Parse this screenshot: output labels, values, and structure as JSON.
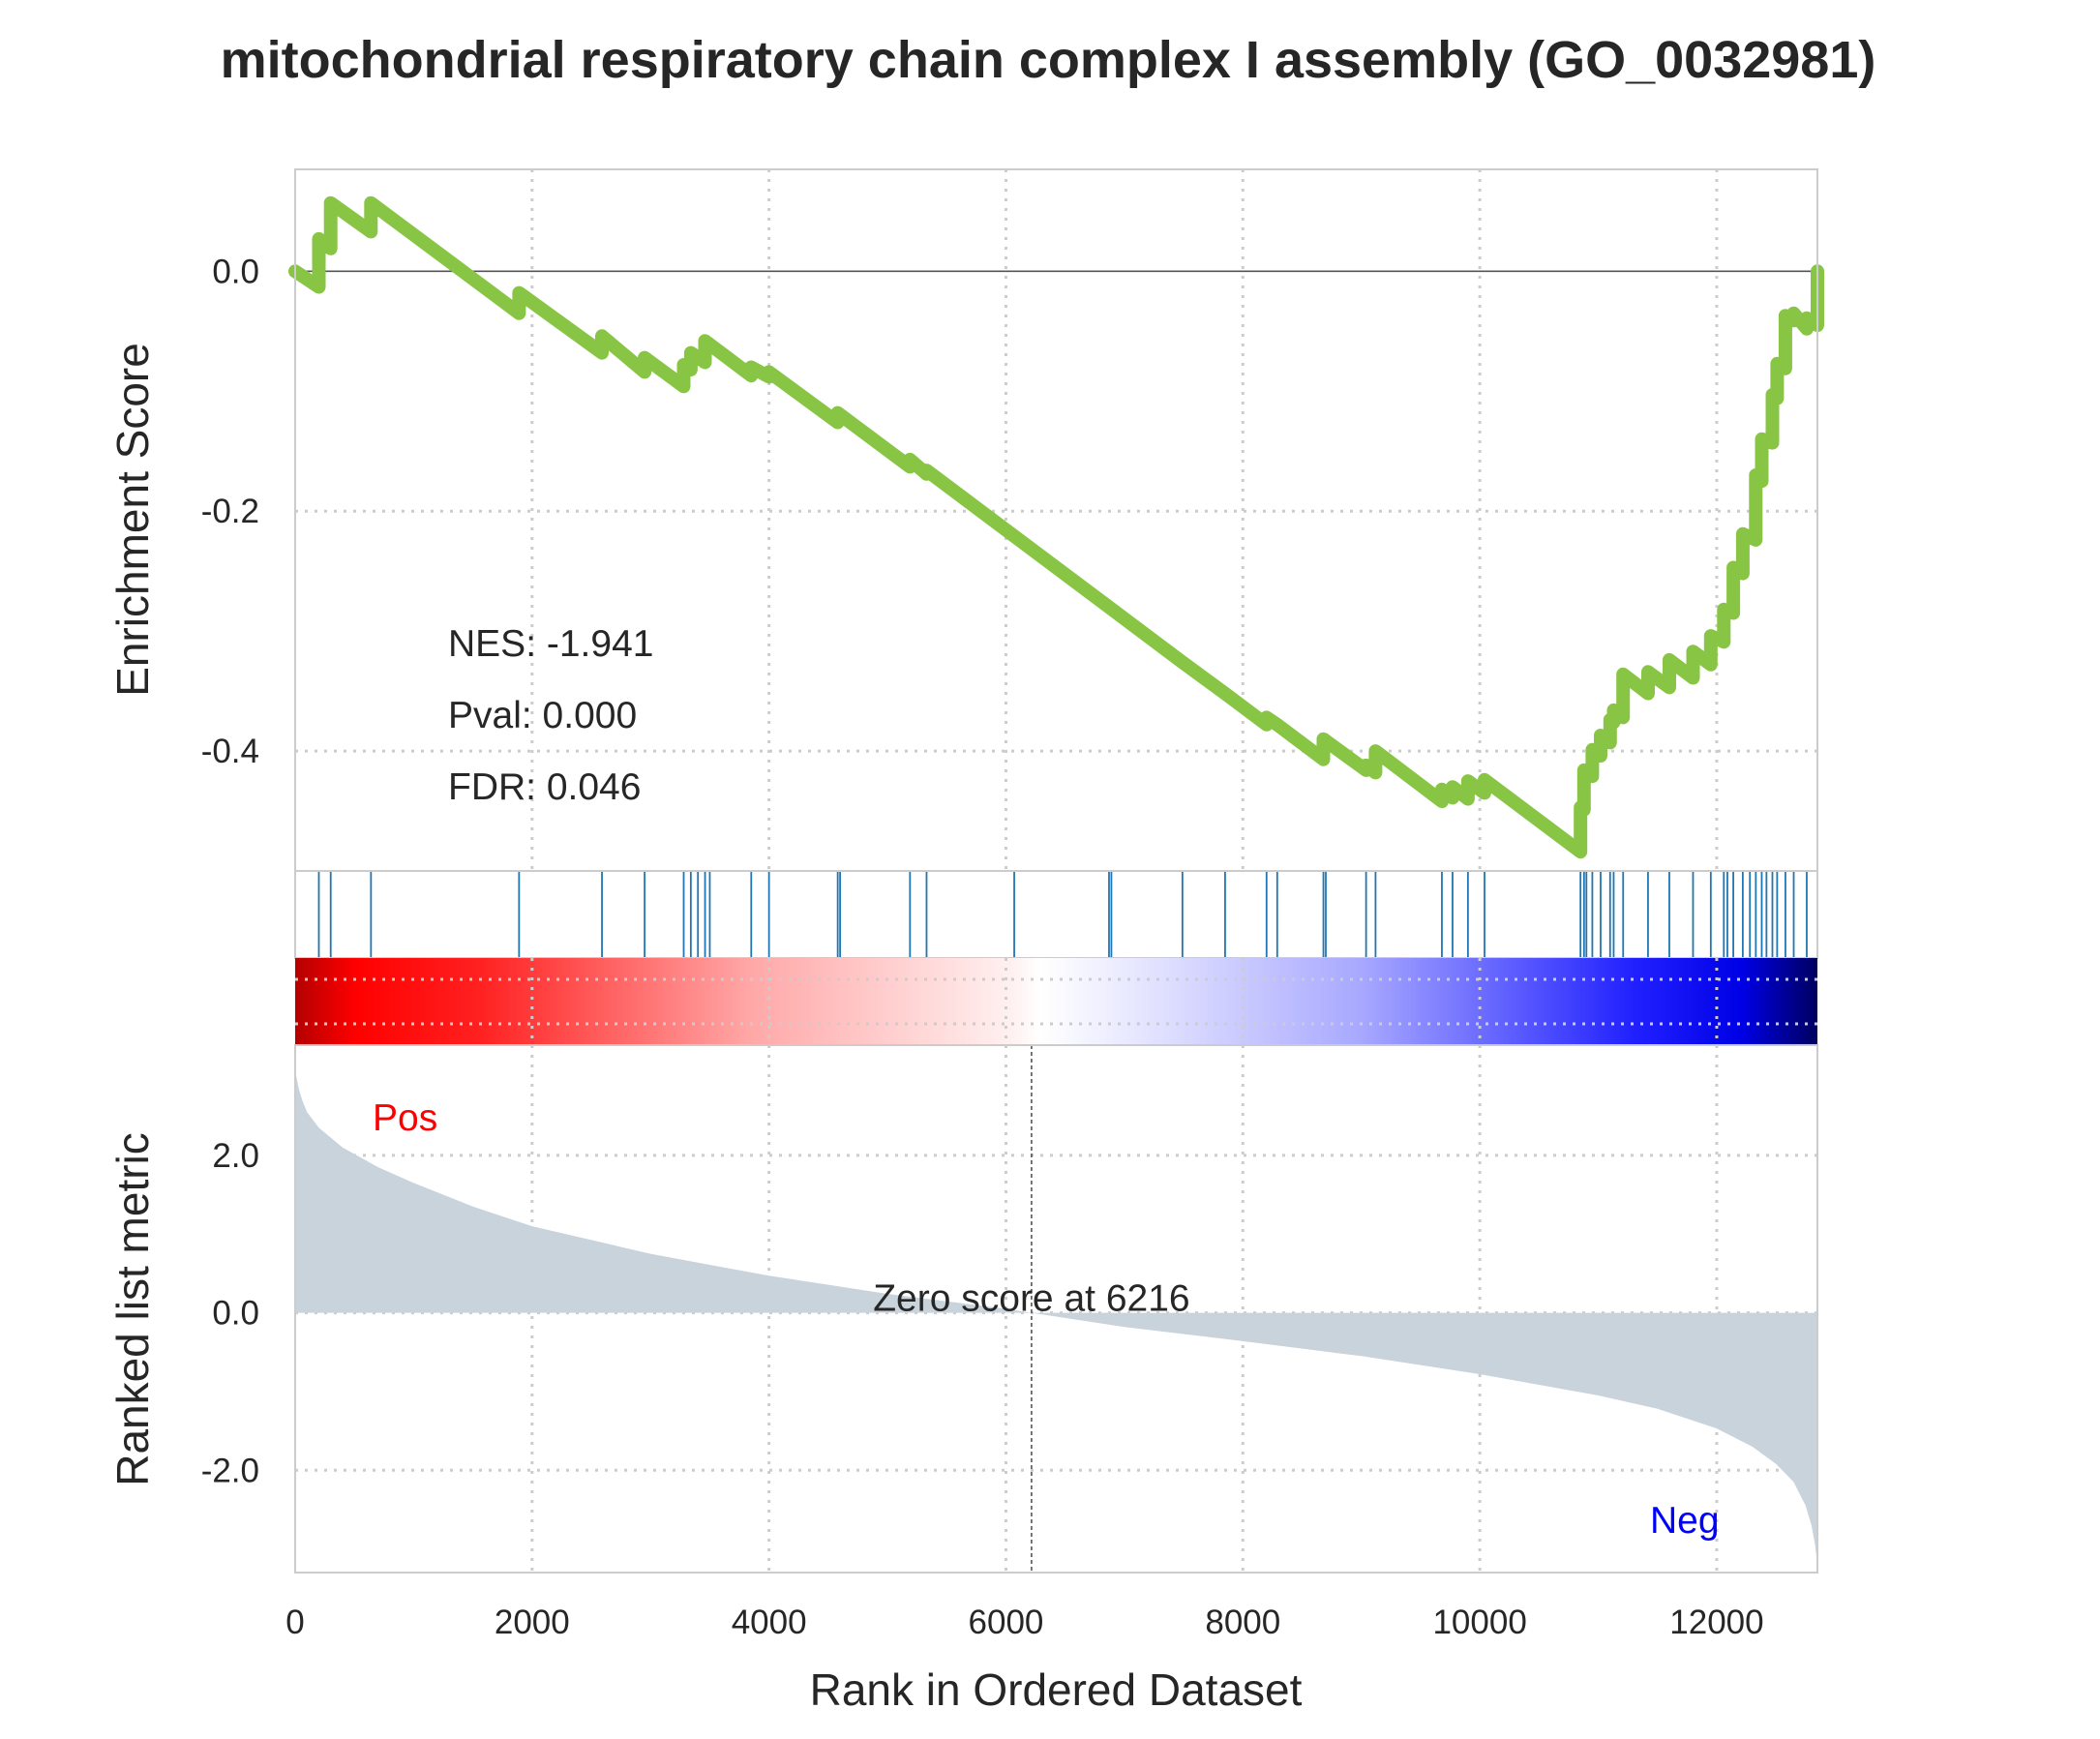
{
  "title": "mitochondrial respiratory chain complex I assembly (GO_0032981)",
  "stats": {
    "nes": "NES: -1.941",
    "pval": "Pval: 0.000",
    "fdr": "FDR: 0.046"
  },
  "labels": {
    "pos": "Pos",
    "neg": "Neg",
    "zero_score": "Zero score at 6216"
  },
  "colors": {
    "es_line": "#88C544",
    "hits": "#1F77B4",
    "metric_fill": "#C9D3DC",
    "pos_text": "#FF0000",
    "neg_text": "#0000FF"
  },
  "chart_data": [
    {
      "type": "line",
      "name": "enrichment-score",
      "ylabel": "Enrichment Score",
      "xlim": [
        0,
        12850
      ],
      "ylim": [
        -0.5,
        0.085
      ],
      "yticks": [
        0.0,
        -0.2,
        -0.4
      ],
      "ytick_labels": [
        "0.0",
        "-0.2",
        "-0.4"
      ],
      "grid": true,
      "x": [
        0,
        200,
        200,
        210,
        300,
        300,
        640,
        640,
        1890,
        1890,
        2590,
        2590,
        2950,
        2950,
        3280,
        3280,
        3340,
        3340,
        3460,
        3460,
        3850,
        3850,
        4000,
        4000,
        4580,
        4580,
        5190,
        5190,
        5330,
        5330,
        6870,
        6870,
        7490,
        7490,
        7850,
        7850,
        8200,
        8200,
        8290,
        8290,
        8680,
        8680,
        9040,
        9040,
        9120,
        9120,
        9680,
        9680,
        9770,
        9770,
        9900,
        9900,
        10040,
        10040,
        10850,
        10850,
        10880,
        10880,
        10950,
        10950,
        11020,
        11020,
        11100,
        11100,
        11130,
        11130,
        11210,
        11210,
        11420,
        11420,
        11600,
        11600,
        11800,
        11800,
        11950,
        11950,
        12060,
        12060,
        12140,
        12140,
        12220,
        12220,
        12330,
        12330,
        12380,
        12380,
        12470,
        12470,
        12510,
        12510,
        12580,
        12580,
        12650,
        12650,
        12760,
        12760,
        12850,
        12850
      ],
      "y": [
        0.0,
        -0.013,
        0.027,
        0.025,
        0.019,
        0.057,
        0.033,
        0.057,
        -0.035,
        -0.018,
        -0.068,
        -0.054,
        -0.084,
        -0.072,
        -0.096,
        -0.078,
        -0.082,
        -0.068,
        -0.076,
        -0.058,
        -0.087,
        -0.08,
        -0.088,
        -0.084,
        -0.126,
        -0.118,
        -0.163,
        -0.157,
        -0.169,
        -0.166,
        -0.28,
        -0.28,
        -0.326,
        -0.326,
        -0.352,
        -0.352,
        -0.378,
        -0.372,
        -0.378,
        -0.378,
        -0.407,
        -0.39,
        -0.416,
        -0.412,
        -0.418,
        -0.4,
        -0.442,
        -0.432,
        -0.439,
        -0.43,
        -0.44,
        -0.425,
        -0.435,
        -0.424,
        -0.484,
        -0.447,
        -0.449,
        -0.416,
        -0.421,
        -0.399,
        -0.404,
        -0.387,
        -0.393,
        -0.374,
        -0.376,
        -0.366,
        -0.372,
        -0.336,
        -0.352,
        -0.334,
        -0.347,
        -0.324,
        -0.339,
        -0.317,
        -0.328,
        -0.304,
        -0.309,
        -0.282,
        -0.285,
        -0.247,
        -0.252,
        -0.219,
        -0.224,
        -0.17,
        -0.175,
        -0.14,
        -0.143,
        -0.103,
        -0.106,
        -0.077,
        -0.081,
        -0.037,
        -0.041,
        -0.035,
        -0.048,
        -0.039,
        -0.045,
        0.0
      ]
    },
    {
      "type": "scatter",
      "name": "hit-positions",
      "x": [
        200,
        300,
        640,
        1890,
        2590,
        2950,
        3280,
        3340,
        3400,
        3460,
        3500,
        3850,
        4000,
        4580,
        4600,
        5190,
        5330,
        6070,
        6870,
        6890,
        7490,
        7850,
        8200,
        8290,
        8680,
        8700,
        9040,
        9120,
        9680,
        9770,
        9900,
        10040,
        10850,
        10880,
        10900,
        10950,
        11020,
        11100,
        11130,
        11210,
        11420,
        11600,
        11800,
        11950,
        12060,
        12090,
        12140,
        12220,
        12280,
        12330,
        12380,
        12420,
        12470,
        12510,
        12580,
        12650,
        12760,
        12850
      ]
    },
    {
      "type": "area",
      "name": "ranked-list-metric",
      "ylabel": "Ranked list metric",
      "xlabel": "Rank in Ordered Dataset",
      "xlim": [
        0,
        12850
      ],
      "ylim": [
        -3.3,
        3.4
      ],
      "xticks": [
        0,
        2000,
        4000,
        6000,
        8000,
        10000,
        12000
      ],
      "xtick_labels": [
        "0",
        "2000",
        "4000",
        "6000",
        "8000",
        "10000",
        "12000"
      ],
      "yticks": [
        2.0,
        0.0,
        -2.0
      ],
      "ytick_labels": [
        "2.0",
        "0.0",
        "-2.0"
      ],
      "zero_cross": 6216,
      "grid": true,
      "x": [
        0,
        10,
        30,
        60,
        100,
        200,
        400,
        700,
        1000,
        1500,
        2000,
        3000,
        4000,
        5000,
        6000,
        6216,
        7000,
        8000,
        9000,
        10000,
        11000,
        11500,
        12000,
        12300,
        12500,
        12650,
        12750,
        12800,
        12830,
        12850
      ],
      "y": [
        3.2,
        3.0,
        2.85,
        2.7,
        2.55,
        2.35,
        2.1,
        1.85,
        1.65,
        1.35,
        1.1,
        0.75,
        0.47,
        0.24,
        0.05,
        0.0,
        -0.18,
        -0.36,
        -0.55,
        -0.78,
        -1.05,
        -1.22,
        -1.47,
        -1.7,
        -1.92,
        -2.15,
        -2.45,
        -2.7,
        -2.95,
        -3.2
      ]
    }
  ]
}
